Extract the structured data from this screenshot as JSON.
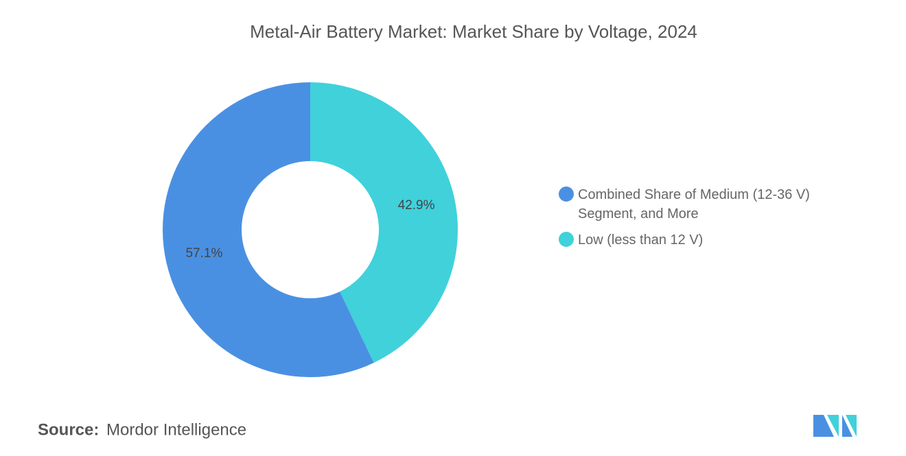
{
  "chart_data": {
    "type": "pie",
    "donut": true,
    "title": "Metal-Air Battery Market: Market Share by Voltage, 2024",
    "categories": [
      "Combined Share of Medium (12-36 V) Segment, and More",
      "Low (less than 12 V)"
    ],
    "values": [
      57.1,
      42.9
    ],
    "value_labels": [
      "57.1%",
      "42.9%"
    ],
    "colors": [
      "#4a90e2",
      "#40d1db"
    ],
    "source_label": "Source:",
    "source": "Mordor Intelligence"
  }
}
